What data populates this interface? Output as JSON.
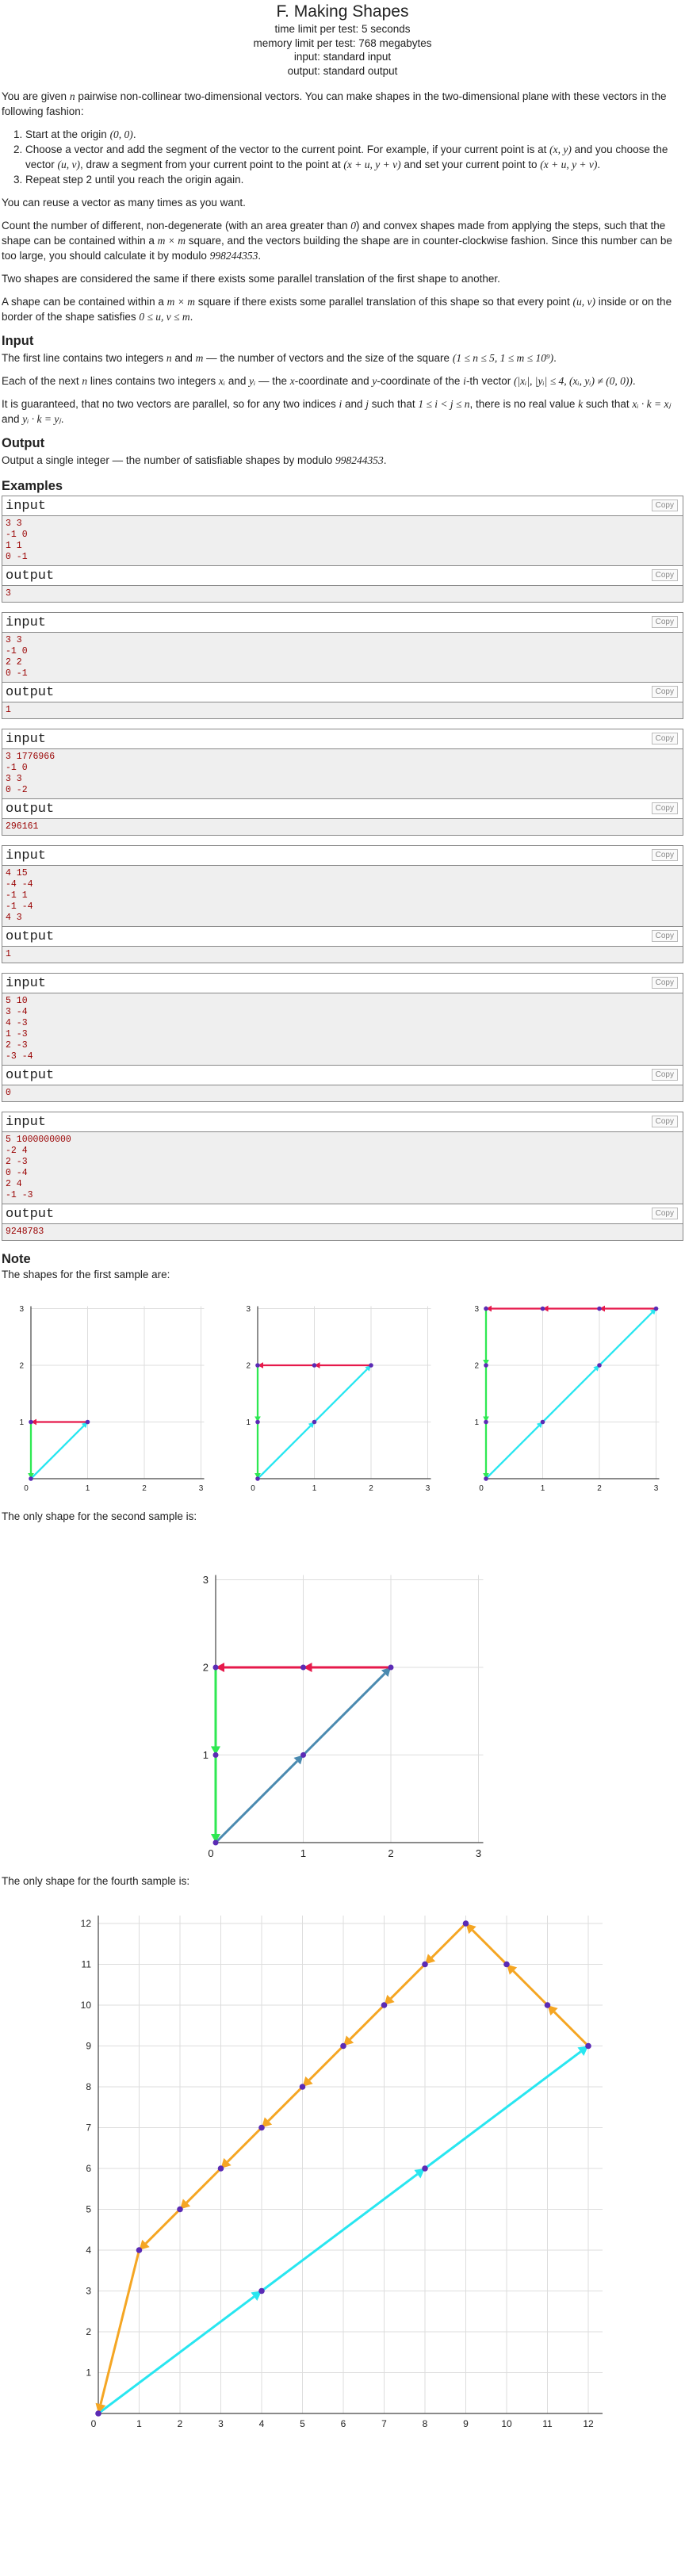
{
  "header": {
    "title": "F. Making Shapes",
    "time_limit": "time limit per test: 5 seconds",
    "memory_limit": "memory limit per test: 768 megabytes",
    "input": "input: standard input",
    "output": "output: standard output"
  },
  "statement": {
    "p1a": "You are given ",
    "p1_n": "n",
    "p1b": " pairwise non-collinear two-dimensional vectors. You can make shapes in the two-dimensional plane with these vectors in the following fashion:",
    "step1a": "Start at the origin ",
    "step1_m": "(0, 0)",
    "step1b": ".",
    "step2a": "Choose a vector and add the segment of the vector to the current point. For example, if your current point is at ",
    "step2_xy": "(x, y)",
    "step2b": " and you choose the vector ",
    "step2_uv": "(u, v)",
    "step2c": ", draw a segment from your current point to the point at ",
    "step2_sum": "(x + u, y + v)",
    "step2d": " and set your current point to ",
    "step2_sum2": "(x + u, y + v)",
    "step2e": ".",
    "step3": "Repeat step 2 until you reach the origin again.",
    "p2": "You can reuse a vector as many times as you want.",
    "p3a": "Count the number of different, non-degenerate (with an area greater than ",
    "p3_zero": "0",
    "p3b": ") and convex shapes made from applying the steps, such that the shape can be contained within a ",
    "p3_mm": "m × m",
    "p3c": " square, and the vectors building the shape are in counter-clockwise fashion. Since this number can be too large, you should calculate it by modulo ",
    "p3_mod": "998244353",
    "p3d": ".",
    "p4": "Two shapes are considered the same if there exists some parallel translation of the first shape to another.",
    "p5a": "A shape can be contained within a ",
    "p5_mm": "m × m",
    "p5b": " square if there exists some parallel translation of this shape so that every point ",
    "p5_uv": "(u, v)",
    "p5c": " inside or on the border of the shape satisfies ",
    "p5_cond": "0 ≤ u, v ≤ m",
    "p5d": "."
  },
  "input_section": {
    "title": "Input",
    "p1a": "The first line contains two integers ",
    "p1_n": "n",
    "p1b": " and ",
    "p1_m": "m",
    "p1c": " — the number of vectors and the size of the square ",
    "p1_cond": "(1 ≤ n ≤ 5, 1 ≤ m ≤ 10⁹)",
    "p1d": ".",
    "p2a": "Each of the next ",
    "p2_n": "n",
    "p2b": " lines contains two integers ",
    "p2_xi": "xᵢ",
    "p2c": " and ",
    "p2_yi": "yᵢ",
    "p2d": " — the ",
    "p2_x": "x",
    "p2e": "-coordinate and ",
    "p2_y": "y",
    "p2f": "-coordinate of the ",
    "p2_i": "i",
    "p2g": "-th vector ",
    "p2_cond": "(|xᵢ|, |yᵢ| ≤ 4, (xᵢ, yᵢ) ≠ (0, 0))",
    "p2h": ".",
    "p3a": "It is guaranteed, that no two vectors are parallel, so for any two indices ",
    "p3_i": "i",
    "p3b": " and ",
    "p3_j": "j",
    "p3c": " such that ",
    "p3_cond": "1 ≤ i < j ≤ n",
    "p3d": ", there is no real value ",
    "p3_k": "k",
    "p3e": " such that ",
    "p3_eq1": "xᵢ · k = xⱼ",
    "p3f": " and ",
    "p3_eq2": "yᵢ · k = yⱼ",
    "p3g": "."
  },
  "output_section": {
    "title": "Output",
    "p1a": "Output a single integer  — the number of satisfiable shapes by modulo ",
    "p1_mod": "998244353",
    "p1b": "."
  },
  "examples": {
    "title": "Examples",
    "input_label": "input",
    "output_label": "output",
    "copy_label": "Copy",
    "items": [
      {
        "input": "3 3\n-1 0\n1 1\n0 -1",
        "output": "3"
      },
      {
        "input": "3 3\n-1 0\n2 2\n0 -1",
        "output": "1"
      },
      {
        "input": "3 1776966\n-1 0\n3 3\n0 -2",
        "output": "296161"
      },
      {
        "input": "4 15\n-4 -4\n-1 1\n-1 -4\n4 3",
        "output": "1"
      },
      {
        "input": "5 10\n3 -4\n4 -3\n1 -3\n2 -3\n-3 -4",
        "output": "0"
      },
      {
        "input": "5 1000000000\n-2 4\n2 -3\n0 -4\n2 4\n-1 -3",
        "output": "9248783"
      }
    ]
  },
  "note": {
    "title": "Note",
    "caption1": "The shapes for the first sample are:",
    "caption2": "The only shape for the second sample is:",
    "caption3": "The only shape for the fourth sample is:"
  },
  "colors": {
    "red": "#e6194b",
    "green": "#2ee852",
    "cyan": "#28e6f0",
    "steel": "#4a8ab0",
    "orange": "#f5a623",
    "dot": "#5b2bb5",
    "grid": "#dddddd"
  },
  "figures": {
    "fig1": {
      "tick_labels": [
        "0",
        "1",
        "2",
        "3"
      ],
      "shapes": [
        {
          "path": [
            [
              0,
              0
            ],
            [
              1,
              1
            ],
            [
              0,
              1
            ],
            [
              0,
              0
            ]
          ]
        },
        {
          "path": [
            [
              0,
              0
            ],
            [
              2,
              2
            ],
            [
              0,
              2
            ],
            [
              0,
              0
            ]
          ]
        },
        {
          "path": [
            [
              0,
              0
            ],
            [
              3,
              3
            ],
            [
              0,
              3
            ],
            [
              0,
              0
            ]
          ]
        }
      ]
    },
    "fig2": {
      "tick_labels": [
        "0",
        "1",
        "2",
        "3"
      ],
      "path": [
        [
          0,
          0
        ],
        [
          2,
          2
        ],
        [
          0,
          2
        ],
        [
          0,
          0
        ]
      ]
    },
    "fig3": {
      "x_ticks": [
        "0",
        "1",
        "2",
        "3",
        "4",
        "5",
        "6",
        "7",
        "8",
        "9",
        "10",
        "11",
        "12"
      ],
      "y_ticks": [
        "0",
        "1",
        "2",
        "3",
        "4",
        "5",
        "6",
        "7",
        "8",
        "9",
        "10",
        "11",
        "12"
      ],
      "path": [
        [
          0,
          0
        ],
        [
          12,
          9
        ],
        [
          9,
          12
        ],
        [
          1,
          4
        ],
        [
          0,
          0
        ]
      ]
    }
  }
}
